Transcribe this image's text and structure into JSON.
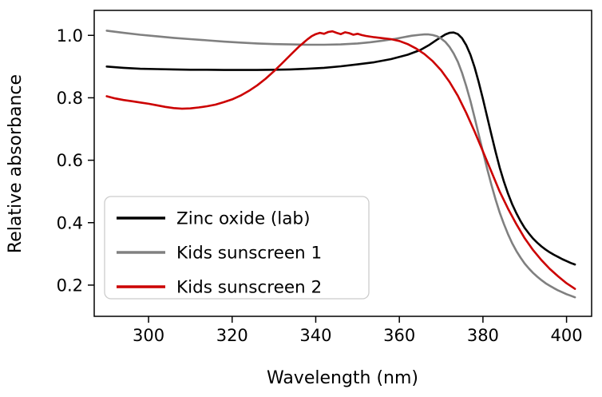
{
  "chart_data": {
    "type": "line",
    "title": "",
    "xlabel": "Wavelength (nm)",
    "ylabel": "Relative absorbance",
    "xlim": [
      287,
      406
    ],
    "ylim": [
      0.1,
      1.08
    ],
    "grid": false,
    "legend_position": "lower left",
    "xticks": [
      300,
      320,
      340,
      360,
      380,
      400
    ],
    "xtick_labels": [
      "300",
      "320",
      "340",
      "360",
      "380",
      "400"
    ],
    "yticks": [
      0.2,
      0.4,
      0.6,
      0.8,
      1.0
    ],
    "ytick_labels": [
      "0.2",
      "0.4",
      "0.6",
      "0.8",
      "1.0"
    ],
    "series": [
      {
        "name": "Zinc oxide (lab)",
        "color": "#000000",
        "points": [
          [
            290,
            0.9
          ],
          [
            294,
            0.896
          ],
          [
            298,
            0.893
          ],
          [
            302,
            0.892
          ],
          [
            306,
            0.891
          ],
          [
            310,
            0.89
          ],
          [
            314,
            0.89
          ],
          [
            318,
            0.889
          ],
          [
            322,
            0.889
          ],
          [
            326,
            0.889
          ],
          [
            330,
            0.89
          ],
          [
            334,
            0.891
          ],
          [
            338,
            0.893
          ],
          [
            342,
            0.896
          ],
          [
            346,
            0.901
          ],
          [
            350,
            0.907
          ],
          [
            354,
            0.914
          ],
          [
            358,
            0.924
          ],
          [
            362,
            0.938
          ],
          [
            365,
            0.953
          ],
          [
            367,
            0.968
          ],
          [
            369,
            0.986
          ],
          [
            371,
            1.003
          ],
          [
            372,
            1.008
          ],
          [
            373,
            1.009
          ],
          [
            374,
            1.004
          ],
          [
            375,
            0.991
          ],
          [
            376,
            0.969
          ],
          [
            377,
            0.938
          ],
          [
            378,
            0.898
          ],
          [
            379,
            0.85
          ],
          [
            380,
            0.796
          ],
          [
            381,
            0.74
          ],
          [
            382,
            0.683
          ],
          [
            383,
            0.628
          ],
          [
            384,
            0.577
          ],
          [
            385,
            0.532
          ],
          [
            386,
            0.493
          ],
          [
            387,
            0.459
          ],
          [
            388,
            0.43
          ],
          [
            389,
            0.405
          ],
          [
            390,
            0.383
          ],
          [
            391,
            0.365
          ],
          [
            392,
            0.349
          ],
          [
            393,
            0.336
          ],
          [
            394,
            0.324
          ],
          [
            395,
            0.314
          ],
          [
            396,
            0.305
          ],
          [
            397,
            0.297
          ],
          [
            398,
            0.29
          ],
          [
            399,
            0.283
          ],
          [
            400,
            0.277
          ],
          [
            401,
            0.271
          ],
          [
            402,
            0.266
          ]
        ]
      },
      {
        "name": "Kids sunscreen 1",
        "color": "#808080",
        "points": [
          [
            290,
            1.015
          ],
          [
            294,
            1.008
          ],
          [
            298,
            1.002
          ],
          [
            302,
            0.997
          ],
          [
            306,
            0.992
          ],
          [
            310,
            0.988
          ],
          [
            314,
            0.984
          ],
          [
            318,
            0.98
          ],
          [
            322,
            0.977
          ],
          [
            326,
            0.974
          ],
          [
            330,
            0.972
          ],
          [
            334,
            0.971
          ],
          [
            338,
            0.97
          ],
          [
            342,
            0.97
          ],
          [
            346,
            0.971
          ],
          [
            350,
            0.974
          ],
          [
            353,
            0.978
          ],
          [
            356,
            0.983
          ],
          [
            359,
            0.989
          ],
          [
            361,
            0.994
          ],
          [
            363,
            0.999
          ],
          [
            365,
            1.002
          ],
          [
            366,
            1.003
          ],
          [
            367,
            1.003
          ],
          [
            368,
            1.001
          ],
          [
            369,
            0.997
          ],
          [
            370,
            0.99
          ],
          [
            371,
            0.979
          ],
          [
            372,
            0.963
          ],
          [
            373,
            0.942
          ],
          [
            374,
            0.915
          ],
          [
            375,
            0.88
          ],
          [
            376,
            0.838
          ],
          [
            377,
            0.79
          ],
          [
            378,
            0.737
          ],
          [
            379,
            0.682
          ],
          [
            380,
            0.627
          ],
          [
            381,
            0.573
          ],
          [
            382,
            0.522
          ],
          [
            383,
            0.475
          ],
          [
            384,
            0.433
          ],
          [
            385,
            0.396
          ],
          [
            386,
            0.363
          ],
          [
            387,
            0.334
          ],
          [
            388,
            0.309
          ],
          [
            389,
            0.288
          ],
          [
            390,
            0.269
          ],
          [
            391,
            0.253
          ],
          [
            392,
            0.239
          ],
          [
            393,
            0.227
          ],
          [
            394,
            0.216
          ],
          [
            395,
            0.206
          ],
          [
            396,
            0.198
          ],
          [
            397,
            0.19
          ],
          [
            398,
            0.183
          ],
          [
            399,
            0.177
          ],
          [
            400,
            0.171
          ],
          [
            401,
            0.166
          ],
          [
            402,
            0.161
          ]
        ]
      },
      {
        "name": "Kids sunscreen 2",
        "color": "#cc0000",
        "points": [
          [
            290,
            0.805
          ],
          [
            292,
            0.798
          ],
          [
            294,
            0.793
          ],
          [
            296,
            0.789
          ],
          [
            298,
            0.785
          ],
          [
            300,
            0.781
          ],
          [
            302,
            0.776
          ],
          [
            304,
            0.771
          ],
          [
            306,
            0.767
          ],
          [
            308,
            0.765
          ],
          [
            310,
            0.766
          ],
          [
            312,
            0.769
          ],
          [
            314,
            0.773
          ],
          [
            316,
            0.778
          ],
          [
            318,
            0.786
          ],
          [
            320,
            0.795
          ],
          [
            322,
            0.807
          ],
          [
            324,
            0.822
          ],
          [
            326,
            0.84
          ],
          [
            328,
            0.861
          ],
          [
            330,
            0.885
          ],
          [
            332,
            0.911
          ],
          [
            334,
            0.938
          ],
          [
            336,
            0.964
          ],
          [
            338,
            0.987
          ],
          [
            339,
            0.997
          ],
          [
            340,
            1.004
          ],
          [
            341,
            1.008
          ],
          [
            342,
            1.005
          ],
          [
            343,
            1.011
          ],
          [
            344,
            1.013
          ],
          [
            345,
            1.008
          ],
          [
            346,
            1.004
          ],
          [
            347,
            1.01
          ],
          [
            348,
            1.007
          ],
          [
            349,
            1.002
          ],
          [
            350,
            1.005
          ],
          [
            351,
            1.001
          ],
          [
            352,
            0.998
          ],
          [
            354,
            0.994
          ],
          [
            356,
            0.991
          ],
          [
            358,
            0.988
          ],
          [
            360,
            0.982
          ],
          [
            362,
            0.972
          ],
          [
            364,
            0.958
          ],
          [
            366,
            0.94
          ],
          [
            368,
            0.917
          ],
          [
            370,
            0.888
          ],
          [
            372,
            0.851
          ],
          [
            374,
            0.806
          ],
          [
            376,
            0.752
          ],
          [
            378,
            0.692
          ],
          [
            380,
            0.628
          ],
          [
            382,
            0.564
          ],
          [
            384,
            0.5
          ],
          [
            386,
            0.445
          ],
          [
            388,
            0.395
          ],
          [
            390,
            0.35
          ],
          [
            392,
            0.312
          ],
          [
            394,
            0.28
          ],
          [
            396,
            0.252
          ],
          [
            398,
            0.228
          ],
          [
            400,
            0.206
          ],
          [
            402,
            0.188
          ]
        ]
      }
    ]
  }
}
